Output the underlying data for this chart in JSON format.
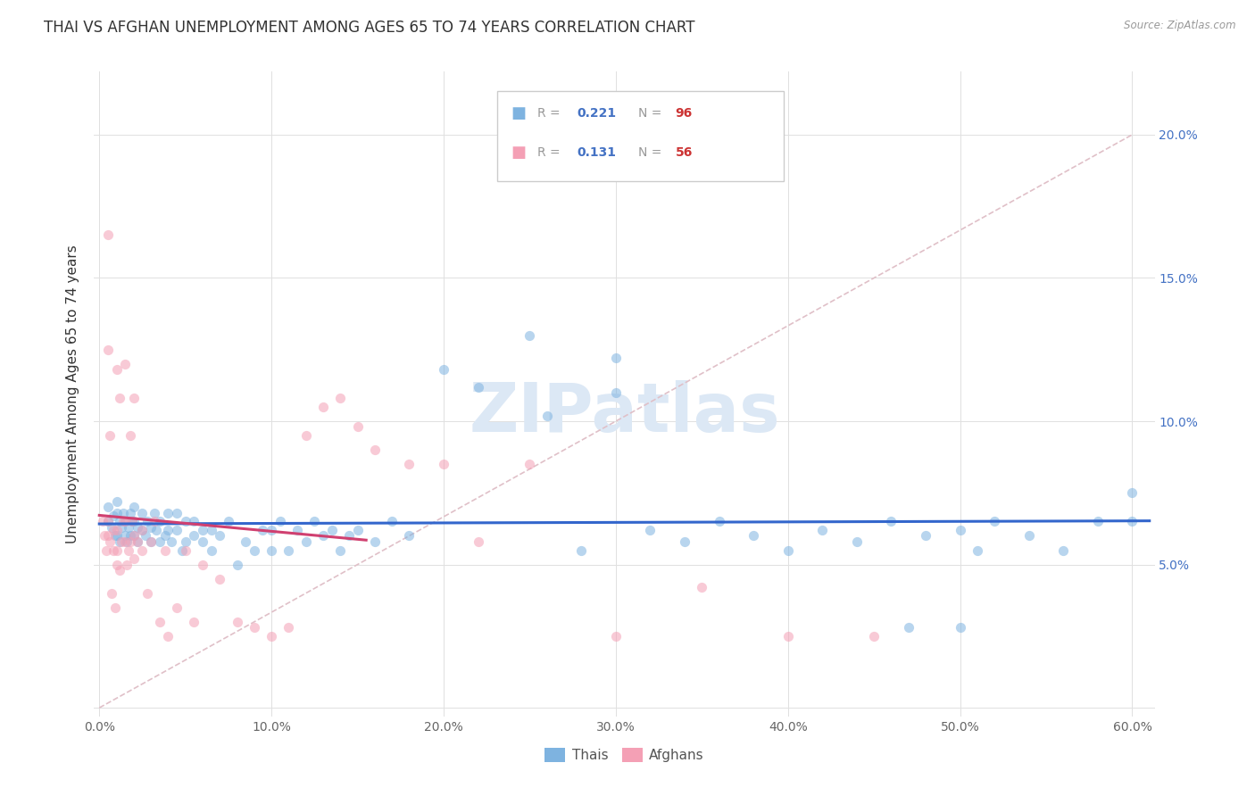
{
  "title": "THAI VS AFGHAN UNEMPLOYMENT AMONG AGES 65 TO 74 YEARS CORRELATION CHART",
  "source": "Source: ZipAtlas.com",
  "ylabel": "Unemployment Among Ages 65 to 74 years",
  "xlim": [
    0,
    0.6
  ],
  "ylim": [
    0,
    0.22
  ],
  "xtick_vals": [
    0.0,
    0.1,
    0.2,
    0.3,
    0.4,
    0.5,
    0.6
  ],
  "xtick_labels": [
    "0.0%",
    "10.0%",
    "20.0%",
    "30.0%",
    "40.0%",
    "50.0%",
    "60.0%"
  ],
  "ytick_vals": [
    0.0,
    0.05,
    0.1,
    0.15,
    0.2
  ],
  "right_ytick_labels": [
    "",
    "5.0%",
    "10.0%",
    "15.0%",
    "20.0%"
  ],
  "thai_color": "#7eb3e0",
  "afghan_color": "#f4a0b5",
  "thai_line_color": "#3366cc",
  "afghan_line_color": "#d04070",
  "diag_line_color": "#e0c0c8",
  "watermark_color": "#dce8f5",
  "background_color": "#ffffff",
  "title_fontsize": 12,
  "axis_label_fontsize": 11,
  "tick_fontsize": 10,
  "right_tick_color": "#4472c4",
  "thai_R": 0.221,
  "thai_N": 96,
  "afghan_R": 0.131,
  "afghan_N": 56,
  "thai_x": [
    0.005,
    0.005,
    0.007,
    0.008,
    0.009,
    0.01,
    0.01,
    0.01,
    0.012,
    0.012,
    0.013,
    0.014,
    0.015,
    0.015,
    0.016,
    0.017,
    0.018,
    0.018,
    0.019,
    0.02,
    0.02,
    0.02,
    0.022,
    0.022,
    0.025,
    0.025,
    0.027,
    0.028,
    0.03,
    0.03,
    0.032,
    0.033,
    0.035,
    0.035,
    0.038,
    0.04,
    0.04,
    0.042,
    0.045,
    0.045,
    0.048,
    0.05,
    0.05,
    0.055,
    0.055,
    0.06,
    0.06,
    0.065,
    0.065,
    0.07,
    0.075,
    0.08,
    0.085,
    0.09,
    0.095,
    0.1,
    0.1,
    0.105,
    0.11,
    0.115,
    0.12,
    0.125,
    0.13,
    0.135,
    0.14,
    0.145,
    0.15,
    0.16,
    0.17,
    0.18,
    0.2,
    0.22,
    0.25,
    0.26,
    0.28,
    0.3,
    0.3,
    0.32,
    0.34,
    0.36,
    0.38,
    0.4,
    0.42,
    0.44,
    0.46,
    0.48,
    0.5,
    0.51,
    0.52,
    0.54,
    0.56,
    0.58,
    0.6,
    0.6,
    0.47,
    0.5
  ],
  "thai_y": [
    0.065,
    0.07,
    0.063,
    0.067,
    0.06,
    0.068,
    0.072,
    0.06,
    0.065,
    0.058,
    0.063,
    0.068,
    0.06,
    0.065,
    0.058,
    0.063,
    0.068,
    0.06,
    0.065,
    0.06,
    0.065,
    0.07,
    0.058,
    0.063,
    0.062,
    0.068,
    0.06,
    0.065,
    0.058,
    0.063,
    0.068,
    0.062,
    0.058,
    0.065,
    0.06,
    0.062,
    0.068,
    0.058,
    0.062,
    0.068,
    0.055,
    0.058,
    0.065,
    0.06,
    0.065,
    0.058,
    0.062,
    0.055,
    0.062,
    0.06,
    0.065,
    0.05,
    0.058,
    0.055,
    0.062,
    0.055,
    0.062,
    0.065,
    0.055,
    0.062,
    0.058,
    0.065,
    0.06,
    0.062,
    0.055,
    0.06,
    0.062,
    0.058,
    0.065,
    0.06,
    0.118,
    0.112,
    0.13,
    0.102,
    0.055,
    0.11,
    0.122,
    0.062,
    0.058,
    0.065,
    0.06,
    0.055,
    0.062,
    0.058,
    0.065,
    0.06,
    0.062,
    0.055,
    0.065,
    0.06,
    0.055,
    0.065,
    0.065,
    0.075,
    0.028,
    0.028
  ],
  "afghan_x": [
    0.002,
    0.003,
    0.004,
    0.005,
    0.005,
    0.006,
    0.007,
    0.008,
    0.008,
    0.009,
    0.01,
    0.01,
    0.01,
    0.012,
    0.013,
    0.014,
    0.015,
    0.015,
    0.016,
    0.017,
    0.018,
    0.019,
    0.02,
    0.02,
    0.022,
    0.025,
    0.025,
    0.028,
    0.03,
    0.032,
    0.035,
    0.038,
    0.04,
    0.045,
    0.05,
    0.055,
    0.06,
    0.07,
    0.08,
    0.09,
    0.1,
    0.11,
    0.12,
    0.13,
    0.14,
    0.15,
    0.16,
    0.18,
    0.2,
    0.22,
    0.25,
    0.3,
    0.35,
    0.4,
    0.45,
    0.005
  ],
  "afghan_y": [
    0.065,
    0.06,
    0.055,
    0.06,
    0.065,
    0.058,
    0.04,
    0.055,
    0.062,
    0.035,
    0.05,
    0.055,
    0.062,
    0.048,
    0.058,
    0.065,
    0.058,
    0.065,
    0.05,
    0.055,
    0.058,
    0.065,
    0.052,
    0.06,
    0.058,
    0.055,
    0.062,
    0.04,
    0.058,
    0.065,
    0.03,
    0.055,
    0.025,
    0.035,
    0.055,
    0.03,
    0.05,
    0.045,
    0.03,
    0.028,
    0.025,
    0.028,
    0.095,
    0.105,
    0.108,
    0.098,
    0.09,
    0.085,
    0.085,
    0.058,
    0.085,
    0.025,
    0.042,
    0.025,
    0.025,
    0.165
  ],
  "afghan_extra_x": [
    0.005,
    0.006,
    0.01,
    0.012,
    0.015,
    0.018,
    0.02
  ],
  "afghan_extra_y": [
    0.125,
    0.095,
    0.118,
    0.108,
    0.12,
    0.095,
    0.108
  ],
  "marker_size": 65,
  "marker_alpha": 0.55,
  "line_width": 2.2,
  "legend_R1_color": "#4472c4",
  "legend_N1_color": "#cc3333",
  "legend_R2_color": "#4472c4",
  "legend_N2_color": "#cc3333"
}
